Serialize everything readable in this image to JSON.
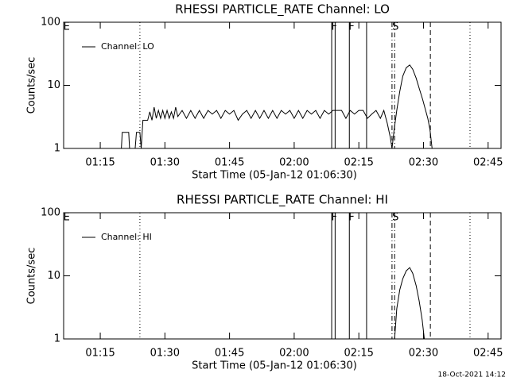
{
  "chart_data": [
    {
      "type": "line",
      "title": "RHESSI PARTICLE_RATE Channel: LO",
      "xlabel": "Start Time (05-Jan-12 01:06:30)",
      "ylabel": "Counts/sec",
      "log_y": true,
      "ylim": [
        1,
        100
      ],
      "yticks": [
        1,
        10,
        100
      ],
      "xlim": [
        66.5,
        168
      ],
      "xticks": [
        {
          "value": 75,
          "label": "01:15"
        },
        {
          "value": 90,
          "label": "01:30"
        },
        {
          "value": 105,
          "label": "01:45"
        },
        {
          "value": 120,
          "label": "02:00"
        },
        {
          "value": 135,
          "label": "02:15"
        },
        {
          "value": 150,
          "label": "02:30"
        },
        {
          "value": 165,
          "label": "02:45"
        }
      ],
      "legend": "top-left",
      "vlines": [
        {
          "x": 84.2,
          "style": "dotted"
        },
        {
          "x": 128.7,
          "style": "solid"
        },
        {
          "x": 129.5,
          "style": "solid"
        },
        {
          "x": 132.8,
          "style": "solid"
        },
        {
          "x": 136.8,
          "style": "solid"
        },
        {
          "x": 142.7,
          "style": "dashdot"
        },
        {
          "x": 143.3,
          "style": "dashdot"
        },
        {
          "x": 151.6,
          "style": "dashed"
        },
        {
          "x": 160.8,
          "style": "dotted"
        }
      ],
      "annotations": [
        {
          "text": "E",
          "x": 67.2
        },
        {
          "text": "F",
          "x": 129.3
        },
        {
          "text": "F",
          "x": 133.3
        },
        {
          "text": "S",
          "x": 143.5
        }
      ],
      "x": [
        79.9,
        80.1,
        81.6,
        81.8,
        83.1,
        83.4,
        84.2,
        84.5,
        84.9,
        86,
        86.5,
        87,
        87.5,
        88,
        88.5,
        89,
        89.5,
        90,
        90.5,
        91,
        91.5,
        92,
        92.5,
        93,
        94,
        95,
        96,
        97,
        98,
        99,
        100,
        101,
        102,
        103,
        104,
        105,
        106,
        107,
        108,
        109,
        110,
        111,
        112,
        113,
        114,
        115,
        116,
        117,
        118,
        119,
        120,
        121,
        122,
        123,
        124,
        125,
        126,
        127,
        128,
        129,
        130,
        131,
        132,
        133,
        134,
        135,
        136,
        137,
        138,
        139,
        140,
        140.8,
        141.6,
        142.3,
        142.7,
        143.2,
        143.8,
        144.5,
        145.2,
        146,
        146.8,
        147.5,
        148.3,
        149,
        149.8,
        150.5,
        151,
        151.5,
        152
      ],
      "series": [
        {
          "name": "Channel: LO",
          "color": "#000000",
          "values": [
            1,
            1.8,
            1.8,
            1,
            1,
            1.8,
            1.8,
            1,
            2.8,
            2.8,
            3.8,
            2.8,
            4.5,
            3,
            4,
            3,
            4,
            3,
            4,
            3,
            3.8,
            3,
            4.5,
            3.2,
            4,
            3,
            4,
            3,
            4,
            3,
            4,
            3.5,
            4,
            3,
            4,
            3.5,
            4,
            2.8,
            3.5,
            4,
            3,
            4,
            3,
            4,
            3,
            4,
            3,
            4,
            3.5,
            4,
            3,
            4,
            3,
            4,
            3.5,
            4,
            3,
            4,
            3.5,
            4,
            4,
            4,
            3,
            4,
            3.5,
            4,
            4,
            3,
            3.5,
            4,
            3,
            4,
            2.5,
            1.5,
            1,
            2,
            4,
            8,
            14,
            19,
            21,
            18,
            13,
            9,
            6,
            4,
            3,
            2,
            1
          ]
        }
      ]
    },
    {
      "type": "line",
      "title": "RHESSI PARTICLE_RATE Channel: HI",
      "xlabel": "Start Time (05-Jan-12 01:06:30)",
      "ylabel": "Counts/sec",
      "log_y": true,
      "ylim": [
        1,
        100
      ],
      "yticks": [
        1,
        10,
        100
      ],
      "xlim": [
        66.5,
        168
      ],
      "xticks": [
        {
          "value": 75,
          "label": "01:15"
        },
        {
          "value": 90,
          "label": "01:30"
        },
        {
          "value": 105,
          "label": "01:45"
        },
        {
          "value": 120,
          "label": "02:00"
        },
        {
          "value": 135,
          "label": "02:15"
        },
        {
          "value": 150,
          "label": "02:30"
        },
        {
          "value": 165,
          "label": "02:45"
        }
      ],
      "legend": "top-left",
      "vlines": [
        {
          "x": 84.2,
          "style": "dotted"
        },
        {
          "x": 128.7,
          "style": "solid"
        },
        {
          "x": 129.5,
          "style": "solid"
        },
        {
          "x": 132.8,
          "style": "solid"
        },
        {
          "x": 136.8,
          "style": "solid"
        },
        {
          "x": 142.7,
          "style": "dashdot"
        },
        {
          "x": 143.3,
          "style": "dashdot"
        },
        {
          "x": 151.6,
          "style": "dashed"
        },
        {
          "x": 160.8,
          "style": "dotted"
        }
      ],
      "annotations": [
        {
          "text": "E",
          "x": 67.2
        },
        {
          "text": "F",
          "x": 129.3
        },
        {
          "text": "F",
          "x": 133.3
        },
        {
          "text": "S",
          "x": 143.5
        }
      ],
      "x": [
        143.3,
        143.8,
        144.5,
        145.2,
        146,
        146.8,
        147.5,
        148.3,
        149,
        149.7,
        150.2
      ],
      "series": [
        {
          "name": "Channel: HI",
          "color": "#000000",
          "values": [
            1,
            3,
            6,
            9,
            12,
            13.5,
            11,
            7,
            4,
            2,
            1
          ]
        }
      ]
    }
  ],
  "footer": "18-Oct-2021 14:12"
}
